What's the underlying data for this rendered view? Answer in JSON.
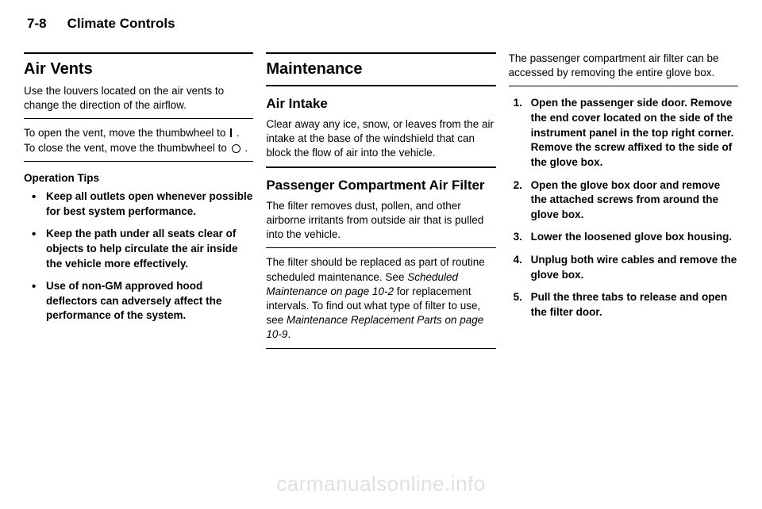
{
  "header": {
    "page_num": "7-8",
    "section": "Climate Controls"
  },
  "col1": {
    "h2": "Air Vents",
    "p1": "Use the louvers located on the air vents to change the direction of the airflow.",
    "p2a": "To open the vent, move the thumbwheel to ",
    "p2b": " . To close the vent, move the thumbwheel to ",
    "p2c": " .",
    "op_tips": "Operation Tips",
    "b1": "Keep all outlets open whenever possible for best system performance.",
    "b2": "Keep the path under all seats clear of objects to help circulate the air inside the vehicle more effectively.",
    "b3": "Use of non-GM approved hood deflectors can adversely affect the performance of the system."
  },
  "col2": {
    "h2": "Maintenance",
    "h3a": "Air Intake",
    "p1": "Clear away any ice, snow, or leaves from the air intake at the base of the windshield that can block the flow of air into the vehicle.",
    "h3b": "Passenger Compartment Air Filter",
    "p2": "The filter removes dust, pollen, and other airborne irritants from outside air that is pulled into the vehicle.",
    "p3a": "The filter should be replaced as part of routine scheduled maintenance. See ",
    "p3i1": "Scheduled Maintenance on page 10-2",
    "p3b": " for replacement intervals. To find out what type of filter to use, see ",
    "p3i2": "Maintenance Replacement Parts on page 10-9",
    "p3c": "."
  },
  "col3": {
    "p1": "The passenger compartment air filter can be accessed by removing the entire glove box.",
    "s1": "Open the passenger side door. Remove the end cover located on the side of the instrument panel in the top right corner. Remove the screw affixed to the side of the glove box.",
    "s2": "Open the glove box door and remove the attached screws from around the glove box.",
    "s3": "Lower the loosened glove box housing.",
    "s4": "Unplug both wire cables and remove the glove box.",
    "s5": "Pull the three tabs to release and open the filter door."
  },
  "watermark": "carmanualsonline.info"
}
